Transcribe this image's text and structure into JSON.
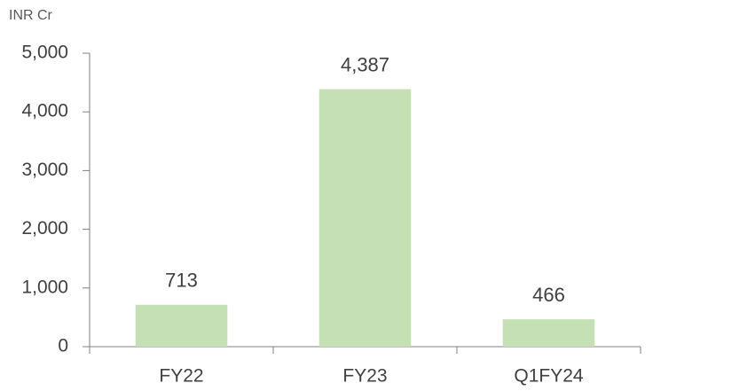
{
  "chart_data": {
    "type": "bar",
    "y_label": "INR Cr",
    "categories": [
      "FY22",
      "FY23",
      "Q1FY24"
    ],
    "values": [
      713,
      4387,
      466
    ],
    "value_labels": [
      "713",
      "4,387",
      "466"
    ],
    "color": "#c5e0b4",
    "ylim": [
      0,
      5000
    ],
    "yticks": [
      0,
      {
        "value": 1000,
        "label": "1,000"
      },
      {
        "value": 2000,
        "label": "2,000"
      },
      {
        "value": 3000,
        "label": "3,000"
      },
      {
        "value": 4000,
        "label": "4,000"
      },
      {
        "value": 5000,
        "label": "5,000"
      }
    ],
    "grid": false
  }
}
